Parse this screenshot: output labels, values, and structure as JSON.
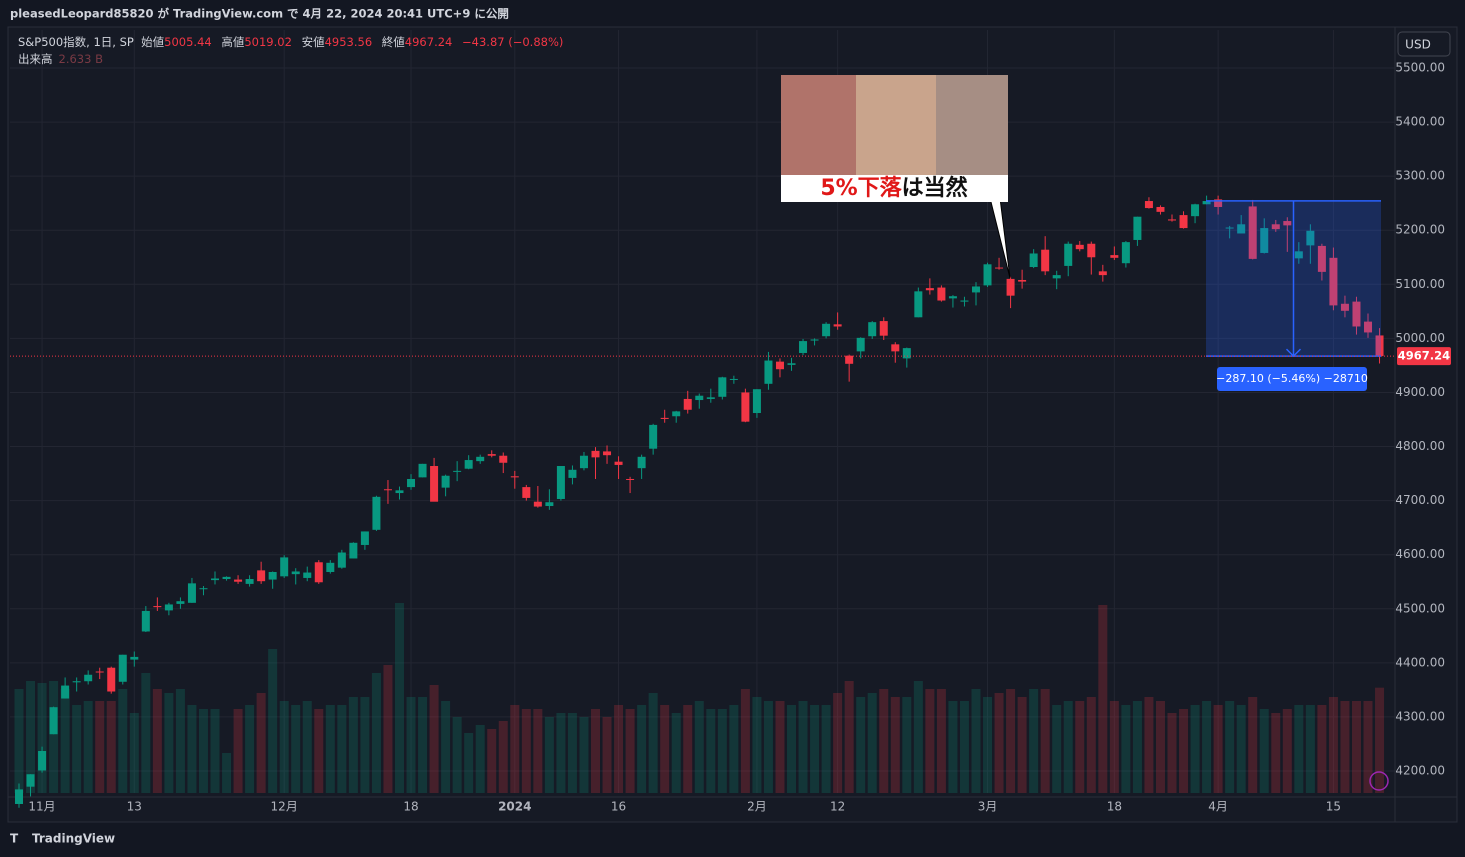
{
  "header": {
    "publisher": "pleasedLeopard85820 が TradingView.com で 4月 22, 2024 20:41 UTC+9 に公開",
    "footer_logo": "TradingView"
  },
  "chart_data": {
    "type": "candlestick",
    "currency": "USD",
    "ohlc_labels": [
      "始値",
      "高値",
      "安値",
      "終値"
    ],
    "change_label": "−43.87 (−0.88%)",
    "up_color": "#089981",
    "down_color": "#f23645",
    "categories": [
      null,
      null,
      "11月",
      null,
      null,
      null,
      null,
      null,
      null,
      null,
      "13",
      null,
      null,
      null,
      null,
      null,
      null,
      null,
      null,
      null,
      null,
      null,
      null,
      "12月",
      null,
      null,
      null,
      null,
      null,
      null,
      null,
      null,
      null,
      null,
      "18",
      null,
      null,
      null,
      null,
      null,
      null,
      null,
      null,
      "2024",
      null,
      null,
      null,
      null,
      null,
      null,
      null,
      null,
      "16",
      null,
      null,
      null,
      null,
      null,
      null,
      null,
      null,
      null,
      null,
      null,
      "2月",
      null,
      null,
      null,
      null,
      null,
      null,
      "12",
      null,
      null,
      null,
      null,
      null,
      null,
      null,
      null,
      null,
      null,
      null,
      null,
      "3月",
      null,
      null,
      null,
      null,
      null,
      null,
      null,
      null,
      null,
      null,
      "18",
      null,
      null,
      null,
      null,
      null,
      null,
      null,
      null,
      "4月",
      null,
      null,
      null,
      null,
      null,
      null,
      null,
      null,
      null,
      "15",
      null,
      null,
      null,
      null
    ],
    "series": [
      {
        "name": "S&P500指数, 1日, SP",
        "open": [
          4139,
          4171,
          4201,
          4268,
          4334,
          4364,
          4366,
          4384,
          4391,
          4365,
          4406,
          4458,
          4505,
          4497,
          4509,
          4511,
          4538,
          4553,
          4555,
          4554,
          4546,
          4571,
          4554,
          4560,
          4564,
          4557,
          4586,
          4568,
          4576,
          4593,
          4618,
          4646,
          4721,
          4714,
          4725,
          4743,
          4764,
          4724,
          4754,
          4759,
          4773,
          4786,
          4783,
          4745,
          4725,
          4698,
          4690,
          4703,
          4742,
          4760,
          4792,
          4791,
          4772,
          4740,
          4760,
          4796,
          4853,
          4856,
          4888,
          4886,
          4888,
          4892,
          4925,
          4900,
          4862,
          4916,
          4957,
          4951,
          4973,
          4996,
          5004,
          5026,
          4968,
          4976,
          5004,
          5032,
          4989,
          4963,
          5039,
          5093,
          5094,
          5074,
          5068,
          5085,
          5098,
          5131,
          5110,
          5108,
          5132,
          5164,
          5111,
          5134,
          5173,
          5175,
          5124,
          5154,
          5139,
          5182,
          5254,
          5243,
          5220,
          5228,
          5226,
          5248,
          5257,
          5204,
          5194,
          5244,
          5158,
          5211,
          5217,
          5148,
          5172,
          5171,
          5149,
          5064,
          5068,
          5031,
          5005.44
        ],
        "high": [
          4177,
          4194,
          4245,
          4319,
          4373,
          4373,
          4386,
          4391,
          4393,
          4415,
          4421,
          4505,
          4521,
          4511,
          4521,
          4557,
          4542,
          4569,
          4560,
          4562,
          4562,
          4587,
          4569,
          4599,
          4575,
          4578,
          4590,
          4590,
          4609,
          4623,
          4643,
          4709,
          4738,
          4726,
          4749,
          4768,
          4779,
          4748,
          4773,
          4784,
          4785,
          4793,
          4789,
          4755,
          4729,
          4727,
          4721,
          4764,
          4765,
          4790,
          4799,
          4802,
          4782,
          4744,
          4785,
          4842,
          4868,
          4866,
          4903,
          4898,
          4907,
          4929,
          4931,
          4907,
          4906,
          4975,
          4963,
          4964,
          4999,
          5000,
          5030,
          5048,
          4970,
          5002,
          5032,
          5039,
          4993,
          4983,
          5094,
          5111,
          5098,
          5080,
          5077,
          5104,
          5140,
          5149,
          5114,
          5127,
          5165,
          5189,
          5125,
          5179,
          5180,
          5179,
          5136,
          5170,
          5180,
          5225,
          5261,
          5246,
          5229,
          5235,
          5249,
          5264,
          5264,
          5208,
          5228,
          5256,
          5222,
          5219,
          5224,
          5178,
          5211,
          5175,
          5168,
          5079,
          5077,
          5046,
          5019.02
        ],
        "low": [
          4132,
          4153,
          4197,
          4268,
          4334,
          4347,
          4360,
          4370,
          4343,
          4360,
          4393,
          4457,
          4496,
          4488,
          4500,
          4511,
          4525,
          4545,
          4552,
          4546,
          4541,
          4546,
          4537,
          4557,
          4545,
          4551,
          4546,
          4565,
          4574,
          4593,
          4609,
          4644,
          4694,
          4702,
          4720,
          4743,
          4699,
          4708,
          4736,
          4758,
          4768,
          4780,
          4751,
          4722,
          4700,
          4687,
          4683,
          4700,
          4730,
          4756,
          4740,
          4768,
          4740,
          4714,
          4740,
          4785,
          4844,
          4844,
          4861,
          4870,
          4881,
          4887,
          4916,
          4845,
          4853,
          4905,
          4928,
          4940,
          4969,
          4987,
          5000,
          5016,
          4920,
          4963,
          4999,
          4997,
          4955,
          4946,
          5039,
          5081,
          5068,
          5057,
          5059,
          5061,
          5095,
          5127,
          5056,
          5092,
          5130,
          5117,
          5091,
          5115,
          5161,
          5118,
          5105,
          5145,
          5131,
          5171,
          5240,
          5229,
          5216,
          5203,
          5213,
          5248,
          5229,
          5185,
          5194,
          5146,
          5157,
          5197,
          5160,
          5138,
          5138,
          5107,
          5052,
          5039,
          5007,
          5001,
          4953.56
        ],
        "close": [
          4166,
          4194,
          4237,
          4318,
          4358,
          4366,
          4378,
          4383,
          4347,
          4415,
          4411,
          4496,
          4503,
          4508,
          4514,
          4547,
          4538,
          4556,
          4559,
          4550,
          4555,
          4551,
          4568,
          4595,
          4569,
          4567,
          4549,
          4585,
          4604,
          4622,
          4643,
          4707,
          4720,
          4719,
          4740,
          4768,
          4698,
          4746,
          4755,
          4775,
          4781,
          4783,
          4770,
          4743,
          4705,
          4689,
          4697,
          4764,
          4757,
          4783,
          4780,
          4784,
          4766,
          4739,
          4781,
          4840,
          4851,
          4865,
          4868,
          4894,
          4891,
          4928,
          4925,
          4846,
          4906,
          4959,
          4943,
          4954,
          4995,
          4998,
          5027,
          5022,
          4953,
          5001,
          5030,
          5005,
          4976,
          4982,
          5087,
          5089,
          5070,
          5078,
          5070,
          5096,
          5137,
          5130,
          5079,
          5105,
          5157,
          5124,
          5117,
          5175,
          5165,
          5150,
          5117,
          5149,
          5178,
          5225,
          5241,
          5234,
          5218,
          5204,
          5248,
          5254,
          5243,
          5205,
          5211,
          5147,
          5204,
          5202,
          5209,
          5161,
          5199,
          5123,
          5061,
          5051,
          5022,
          5011,
          4967.24
        ]
      }
    ],
    "volume": {
      "name": "出来高",
      "legend_value_label": "2.633 B",
      "values": [
        2.6,
        2.8,
        2.75,
        2.8,
        2.6,
        2.2,
        2.3,
        2.3,
        2.3,
        2.6,
        2.0,
        3.0,
        2.6,
        2.5,
        2.6,
        2.2,
        2.1,
        2.1,
        1.0,
        2.1,
        2.2,
        2.5,
        3.6,
        2.3,
        2.2,
        2.3,
        2.1,
        2.2,
        2.2,
        2.4,
        2.4,
        3.0,
        3.2,
        4.75,
        2.4,
        2.4,
        2.7,
        2.3,
        1.9,
        1.5,
        1.7,
        1.6,
        1.8,
        2.2,
        2.1,
        2.1,
        1.9,
        2.0,
        2.0,
        1.9,
        2.1,
        1.9,
        2.2,
        2.1,
        2.2,
        2.5,
        2.2,
        2.0,
        2.2,
        2.3,
        2.1,
        2.1,
        2.2,
        2.6,
        2.4,
        2.3,
        2.3,
        2.2,
        2.3,
        2.2,
        2.2,
        2.5,
        2.8,
        2.4,
        2.5,
        2.6,
        2.4,
        2.4,
        2.8,
        2.6,
        2.6,
        2.3,
        2.3,
        2.6,
        2.4,
        2.5,
        2.6,
        2.4,
        2.6,
        2.6,
        2.2,
        2.3,
        2.3,
        2.4,
        4.7,
        2.3,
        2.2,
        2.3,
        2.4,
        2.3,
        2.0,
        2.1,
        2.2,
        2.3,
        2.2,
        2.3,
        2.2,
        2.4,
        2.1,
        2.0,
        2.1,
        2.2,
        2.2,
        2.2,
        2.4,
        2.3,
        2.3,
        2.3,
        2.633
      ]
    },
    "ylim": [
      4200,
      5500
    ],
    "yticks": [
      {
        "value": 4200,
        "label": "4200.00"
      },
      {
        "value": 4300,
        "label": "4300.00"
      },
      {
        "value": 4400,
        "label": "4400.00"
      },
      {
        "value": 4500,
        "label": "4500.00"
      },
      {
        "value": 4600,
        "label": "4600.00"
      },
      {
        "value": 4700,
        "label": "4700.00"
      },
      {
        "value": 4800,
        "label": "4800.00"
      },
      {
        "value": 4900,
        "label": "4900.00"
      },
      {
        "value": 5000,
        "label": "5000.00"
      },
      {
        "value": 5100,
        "label": "5100.00"
      },
      {
        "value": 5200,
        "label": "5200.00"
      },
      {
        "value": 5300,
        "label": "5300.00"
      },
      {
        "value": 5400,
        "label": "5400.00"
      },
      {
        "value": 5500,
        "label": "5500.00"
      }
    ],
    "grid": true,
    "measure": {
      "from": 5254.34,
      "to": 4967.24,
      "label": "−287.10 (−5.46%) −28710",
      "color": "#2962ff"
    },
    "annotation": {
      "caption_red": "5%下落",
      "caption_black": "は当然"
    }
  }
}
